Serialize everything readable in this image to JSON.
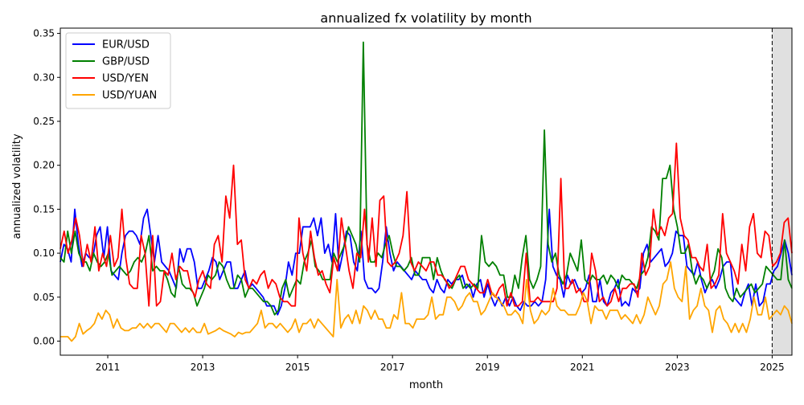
{
  "chart_data": {
    "type": "line",
    "title": "annualized fx volatility by month",
    "xlabel": "month",
    "ylabel": "annualized volatility",
    "x_range": [
      "2010-01",
      "2025-06"
    ],
    "x_ticks": [
      "2011",
      "2013",
      "2015",
      "2017",
      "2019",
      "2021",
      "2023",
      "2025"
    ],
    "ylim": [
      -0.016,
      0.356
    ],
    "y_ticks": [
      "0.00",
      "0.05",
      "0.10",
      "0.15",
      "0.20",
      "0.25",
      "0.30",
      "0.35"
    ],
    "grid": false,
    "legend_position": "top-left",
    "vline": "2025-01",
    "shaded_region": [
      "2025-01",
      "2025-06"
    ],
    "series": [
      {
        "name": "EUR/USD",
        "color": "#0000ff",
        "values": [
          0.09,
          0.11,
          0.105,
          0.09,
          0.15,
          0.11,
          0.085,
          0.1,
          0.095,
          0.095,
          0.12,
          0.13,
          0.095,
          0.13,
          0.08,
          0.075,
          0.07,
          0.1,
          0.12,
          0.125,
          0.125,
          0.12,
          0.11,
          0.14,
          0.15,
          0.12,
          0.09,
          0.12,
          0.09,
          0.085,
          0.08,
          0.07,
          0.06,
          0.105,
          0.09,
          0.105,
          0.105,
          0.09,
          0.06,
          0.06,
          0.07,
          0.08,
          0.095,
          0.09,
          0.07,
          0.08,
          0.09,
          0.09,
          0.06,
          0.06,
          0.07,
          0.08,
          0.06,
          0.065,
          0.06,
          0.055,
          0.05,
          0.04,
          0.04,
          0.04,
          0.03,
          0.04,
          0.06,
          0.09,
          0.075,
          0.1,
          0.1,
          0.13,
          0.13,
          0.13,
          0.14,
          0.12,
          0.14,
          0.1,
          0.11,
          0.09,
          0.145,
          0.08,
          0.1,
          0.125,
          0.12,
          0.09,
          0.08,
          0.125,
          0.07,
          0.06,
          0.06,
          0.055,
          0.06,
          0.09,
          0.13,
          0.1,
          0.08,
          0.09,
          0.085,
          0.08,
          0.075,
          0.07,
          0.08,
          0.075,
          0.07,
          0.07,
          0.06,
          0.055,
          0.07,
          0.06,
          0.055,
          0.07,
          0.065,
          0.07,
          0.07,
          0.075,
          0.06,
          0.065,
          0.05,
          0.065,
          0.07,
          0.05,
          0.065,
          0.05,
          0.04,
          0.05,
          0.04,
          0.05,
          0.04,
          0.05,
          0.04,
          0.035,
          0.045,
          0.04,
          0.04,
          0.045,
          0.04,
          0.045,
          0.07,
          0.15,
          0.085,
          0.075,
          0.07,
          0.05,
          0.075,
          0.065,
          0.07,
          0.06,
          0.055,
          0.06,
          0.075,
          0.045,
          0.045,
          0.07,
          0.045,
          0.04,
          0.055,
          0.06,
          0.07,
          0.04,
          0.045,
          0.04,
          0.06,
          0.055,
          0.06,
          0.1,
          0.11,
          0.09,
          0.095,
          0.1,
          0.105,
          0.085,
          0.09,
          0.1,
          0.125,
          0.12,
          0.12,
          0.085,
          0.08,
          0.075,
          0.09,
          0.07,
          0.055,
          0.065,
          0.07,
          0.06,
          0.07,
          0.085,
          0.09,
          0.09,
          0.05,
          0.045,
          0.04,
          0.055,
          0.065,
          0.04,
          0.065,
          0.04,
          0.045,
          0.065,
          0.065,
          0.08,
          0.085,
          0.1,
          0.115,
          0.1,
          0.075
        ]
      },
      {
        "name": "GBP/USD",
        "color": "#008000",
        "values": [
          0.095,
          0.09,
          0.125,
          0.1,
          0.125,
          0.1,
          0.09,
          0.09,
          0.08,
          0.1,
          0.09,
          0.085,
          0.09,
          0.1,
          0.075,
          0.08,
          0.085,
          0.08,
          0.075,
          0.08,
          0.09,
          0.095,
          0.09,
          0.1,
          0.12,
          0.08,
          0.085,
          0.08,
          0.08,
          0.07,
          0.055,
          0.05,
          0.085,
          0.065,
          0.06,
          0.06,
          0.055,
          0.04,
          0.05,
          0.06,
          0.075,
          0.07,
          0.075,
          0.09,
          0.085,
          0.07,
          0.06,
          0.06,
          0.075,
          0.07,
          0.05,
          0.06,
          0.06,
          0.055,
          0.05,
          0.045,
          0.045,
          0.04,
          0.03,
          0.035,
          0.06,
          0.07,
          0.05,
          0.06,
          0.07,
          0.065,
          0.09,
          0.1,
          0.115,
          0.085,
          0.08,
          0.07,
          0.07,
          0.07,
          0.1,
          0.09,
          0.1,
          0.11,
          0.13,
          0.12,
          0.11,
          0.09,
          0.34,
          0.11,
          0.09,
          0.09,
          0.1,
          0.095,
          0.11,
          0.12,
          0.1,
          0.085,
          0.085,
          0.08,
          0.085,
          0.095,
          0.075,
          0.075,
          0.095,
          0.095,
          0.095,
          0.07,
          0.095,
          0.08,
          0.07,
          0.065,
          0.06,
          0.07,
          0.075,
          0.06,
          0.065,
          0.06,
          0.065,
          0.06,
          0.12,
          0.09,
          0.085,
          0.09,
          0.085,
          0.075,
          0.075,
          0.05,
          0.05,
          0.075,
          0.06,
          0.095,
          0.12,
          0.07,
          0.06,
          0.07,
          0.085,
          0.24,
          0.11,
          0.09,
          0.1,
          0.075,
          0.065,
          0.075,
          0.1,
          0.09,
          0.08,
          0.115,
          0.07,
          0.065,
          0.075,
          0.07,
          0.07,
          0.075,
          0.065,
          0.075,
          0.07,
          0.06,
          0.075,
          0.07,
          0.07,
          0.065,
          0.06,
          0.075,
          0.08,
          0.095,
          0.13,
          0.125,
          0.115,
          0.185,
          0.185,
          0.2,
          0.15,
          0.13,
          0.1,
          0.1,
          0.11,
          0.08,
          0.065,
          0.075,
          0.07,
          0.06,
          0.07,
          0.08,
          0.105,
          0.095,
          0.06,
          0.05,
          0.045,
          0.06,
          0.05,
          0.055,
          0.06,
          0.065,
          0.055,
          0.06,
          0.065,
          0.085,
          0.08,
          0.075,
          0.07,
          0.07,
          0.115,
          0.07,
          0.06
        ]
      },
      {
        "name": "USD/YEN",
        "color": "#ff0000",
        "values": [
          0.105,
          0.125,
          0.1,
          0.115,
          0.14,
          0.12,
          0.085,
          0.11,
          0.09,
          0.13,
          0.08,
          0.1,
          0.085,
          0.12,
          0.085,
          0.095,
          0.15,
          0.095,
          0.065,
          0.06,
          0.06,
          0.12,
          0.1,
          0.04,
          0.12,
          0.04,
          0.045,
          0.08,
          0.075,
          0.1,
          0.07,
          0.085,
          0.08,
          0.08,
          0.06,
          0.05,
          0.07,
          0.08,
          0.065,
          0.06,
          0.11,
          0.12,
          0.09,
          0.165,
          0.14,
          0.2,
          0.11,
          0.115,
          0.07,
          0.06,
          0.07,
          0.065,
          0.075,
          0.08,
          0.06,
          0.07,
          0.065,
          0.05,
          0.045,
          0.045,
          0.04,
          0.04,
          0.14,
          0.1,
          0.08,
          0.125,
          0.095,
          0.075,
          0.08,
          0.065,
          0.055,
          0.095,
          0.08,
          0.14,
          0.11,
          0.08,
          0.06,
          0.1,
          0.095,
          0.15,
          0.09,
          0.14,
          0.085,
          0.16,
          0.165,
          0.09,
          0.085,
          0.09,
          0.1,
          0.12,
          0.17,
          0.09,
          0.08,
          0.09,
          0.085,
          0.08,
          0.09,
          0.09,
          0.075,
          0.075,
          0.07,
          0.06,
          0.065,
          0.075,
          0.085,
          0.085,
          0.07,
          0.065,
          0.06,
          0.055,
          0.055,
          0.07,
          0.055,
          0.05,
          0.06,
          0.065,
          0.04,
          0.055,
          0.04,
          0.04,
          0.045,
          0.1,
          0.045,
          0.045,
          0.05,
          0.045,
          0.045,
          0.045,
          0.045,
          0.06,
          0.185,
          0.06,
          0.06,
          0.07,
          0.055,
          0.06,
          0.045,
          0.045,
          0.1,
          0.08,
          0.045,
          0.05,
          0.04,
          0.045,
          0.06,
          0.045,
          0.06,
          0.06,
          0.065,
          0.065,
          0.05,
          0.1,
          0.075,
          0.085,
          0.15,
          0.12,
          0.13,
          0.12,
          0.14,
          0.145,
          0.225,
          0.14,
          0.12,
          0.115,
          0.095,
          0.095,
          0.085,
          0.08,
          0.11,
          0.06,
          0.065,
          0.075,
          0.145,
          0.1,
          0.09,
          0.08,
          0.065,
          0.11,
          0.08,
          0.13,
          0.145,
          0.1,
          0.095,
          0.125,
          0.12,
          0.085,
          0.09,
          0.1,
          0.135,
          0.14,
          0.1
        ]
      },
      {
        "name": "USD/YUAN",
        "color": "#ffa500",
        "values": [
          0.005,
          0.005,
          0.005,
          0.0,
          0.005,
          0.02,
          0.008,
          0.012,
          0.015,
          0.02,
          0.032,
          0.025,
          0.035,
          0.03,
          0.015,
          0.025,
          0.015,
          0.012,
          0.012,
          0.015,
          0.015,
          0.02,
          0.015,
          0.02,
          0.015,
          0.02,
          0.02,
          0.015,
          0.01,
          0.02,
          0.02,
          0.015,
          0.01,
          0.015,
          0.01,
          0.015,
          0.01,
          0.01,
          0.02,
          0.008,
          0.01,
          0.012,
          0.015,
          0.012,
          0.01,
          0.008,
          0.005,
          0.01,
          0.008,
          0.01,
          0.01,
          0.015,
          0.02,
          0.035,
          0.015,
          0.02,
          0.02,
          0.015,
          0.02,
          0.015,
          0.01,
          0.015,
          0.025,
          0.01,
          0.02,
          0.02,
          0.025,
          0.015,
          0.025,
          0.02,
          0.015,
          0.01,
          0.005,
          0.07,
          0.015,
          0.025,
          0.03,
          0.02,
          0.035,
          0.02,
          0.04,
          0.035,
          0.025,
          0.035,
          0.025,
          0.025,
          0.015,
          0.015,
          0.03,
          0.025,
          0.055,
          0.02,
          0.02,
          0.015,
          0.025,
          0.025,
          0.025,
          0.03,
          0.05,
          0.025,
          0.03,
          0.03,
          0.05,
          0.05,
          0.045,
          0.035,
          0.04,
          0.05,
          0.055,
          0.045,
          0.045,
          0.03,
          0.035,
          0.045,
          0.055,
          0.05,
          0.045,
          0.04,
          0.03,
          0.03,
          0.035,
          0.03,
          0.02,
          0.07,
          0.035,
          0.02,
          0.025,
          0.035,
          0.03,
          0.035,
          0.06,
          0.04,
          0.035,
          0.035,
          0.03,
          0.03,
          0.03,
          0.04,
          0.055,
          0.045,
          0.02,
          0.04,
          0.035,
          0.035,
          0.025,
          0.035,
          0.035,
          0.035,
          0.025,
          0.03,
          0.025,
          0.02,
          0.03,
          0.02,
          0.03,
          0.05,
          0.04,
          0.03,
          0.04,
          0.065,
          0.07,
          0.09,
          0.06,
          0.05,
          0.045,
          0.085,
          0.025,
          0.035,
          0.04,
          0.06,
          0.04,
          0.035,
          0.01,
          0.035,
          0.04,
          0.025,
          0.02,
          0.01,
          0.02,
          0.01,
          0.02,
          0.01,
          0.025,
          0.05,
          0.03,
          0.03,
          0.05,
          0.025,
          0.03,
          0.035,
          0.03,
          0.04,
          0.035,
          0.02
        ]
      }
    ]
  }
}
